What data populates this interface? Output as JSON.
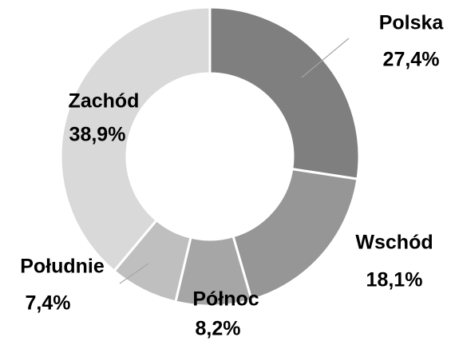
{
  "chart_data": {
    "type": "donut",
    "categories": [
      "Polska",
      "Wschód",
      "Północ",
      "Południe",
      "Zachód"
    ],
    "values": [
      27.4,
      18.1,
      8.2,
      7.4,
      38.9
    ],
    "value_labels": [
      "27,4%",
      "18,1%",
      "8,2%",
      "7,4%",
      "38,9%"
    ],
    "colors": [
      "#7f7f7f",
      "#969696",
      "#a6a6a6",
      "#bfbfbf",
      "#d9d9d9"
    ]
  }
}
